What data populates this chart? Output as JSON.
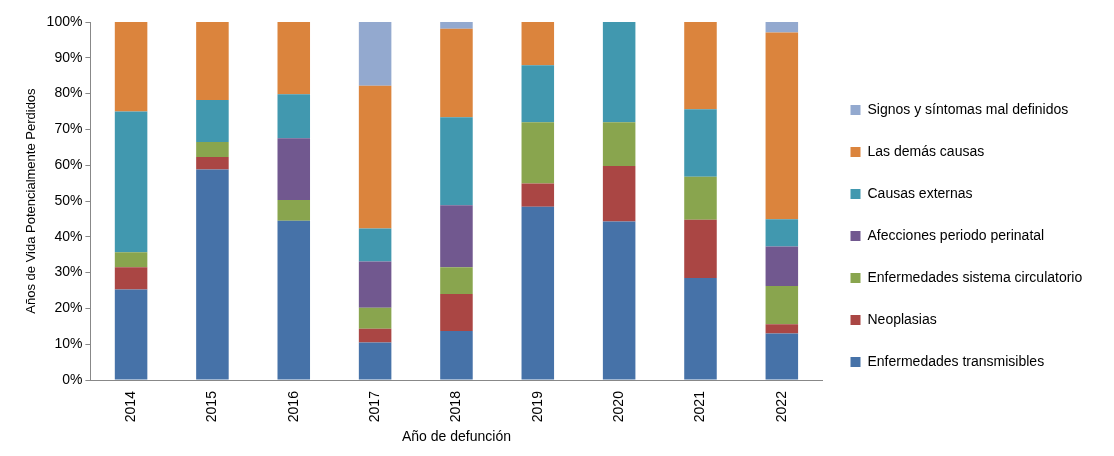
{
  "chart_data": {
    "type": "bar",
    "stacked": true,
    "xlabel": "Año de defunción",
    "ylabel": "Años de Vida Potencialmente Perdidos",
    "categories": [
      "2014",
      "2015",
      "2016",
      "2017",
      "2018",
      "2019",
      "2020",
      "2021",
      "2022"
    ],
    "series": [
      {
        "name": "Enfermedades transmisibles",
        "color": "#4672a8",
        "values": [
          25.3,
          58.8,
          44.5,
          10.5,
          13.7,
          48.4,
          44.3,
          28.5,
          13.0
        ]
      },
      {
        "name": "Neoplasias",
        "color": "#aa4644",
        "values": [
          6.2,
          3.5,
          0,
          3.8,
          10.3,
          6.5,
          15.5,
          16.3,
          2.6
        ]
      },
      {
        "name": "Enfermedades sistema circulatorio",
        "color": "#89a54e",
        "values": [
          4.2,
          4.2,
          5.8,
          5.9,
          7.5,
          17.1,
          12.2,
          12.0,
          10.7
        ]
      },
      {
        "name": "Afecciones periodo perinatal",
        "color": "#71588f",
        "values": [
          0,
          0,
          17.2,
          12.9,
          17.3,
          0,
          0,
          0,
          11.0
        ]
      },
      {
        "name": "Causas externas",
        "color": "#4198af",
        "values": [
          39.3,
          11.7,
          12.3,
          9.2,
          24.6,
          15.9,
          28.0,
          18.8,
          7.6
        ]
      },
      {
        "name": "Las demás causas",
        "color": "#db843d",
        "values": [
          25.0,
          21.8,
          20.2,
          39.9,
          24.7,
          12.1,
          0,
          24.4,
          52.2
        ]
      },
      {
        "name": "Signos y síntomas mal definidos",
        "color": "#93a9cf",
        "values": [
          0,
          0,
          0,
          17.8,
          1.9,
          0,
          0,
          0,
          2.9
        ]
      }
    ],
    "ylim": [
      0,
      100
    ],
    "yticks": [
      {
        "value": 0,
        "label": "0%"
      },
      {
        "value": 10,
        "label": "10%"
      },
      {
        "value": 20,
        "label": "20%"
      },
      {
        "value": 30,
        "label": "30%"
      },
      {
        "value": 40,
        "label": "40%"
      },
      {
        "value": 50,
        "label": "50%"
      },
      {
        "value": 60,
        "label": "60%"
      },
      {
        "value": 70,
        "label": "70%"
      },
      {
        "value": 80,
        "label": "80%"
      },
      {
        "value": 90,
        "label": "90%"
      },
      {
        "value": 100,
        "label": "100%"
      }
    ],
    "grid": false,
    "legend": "right"
  }
}
